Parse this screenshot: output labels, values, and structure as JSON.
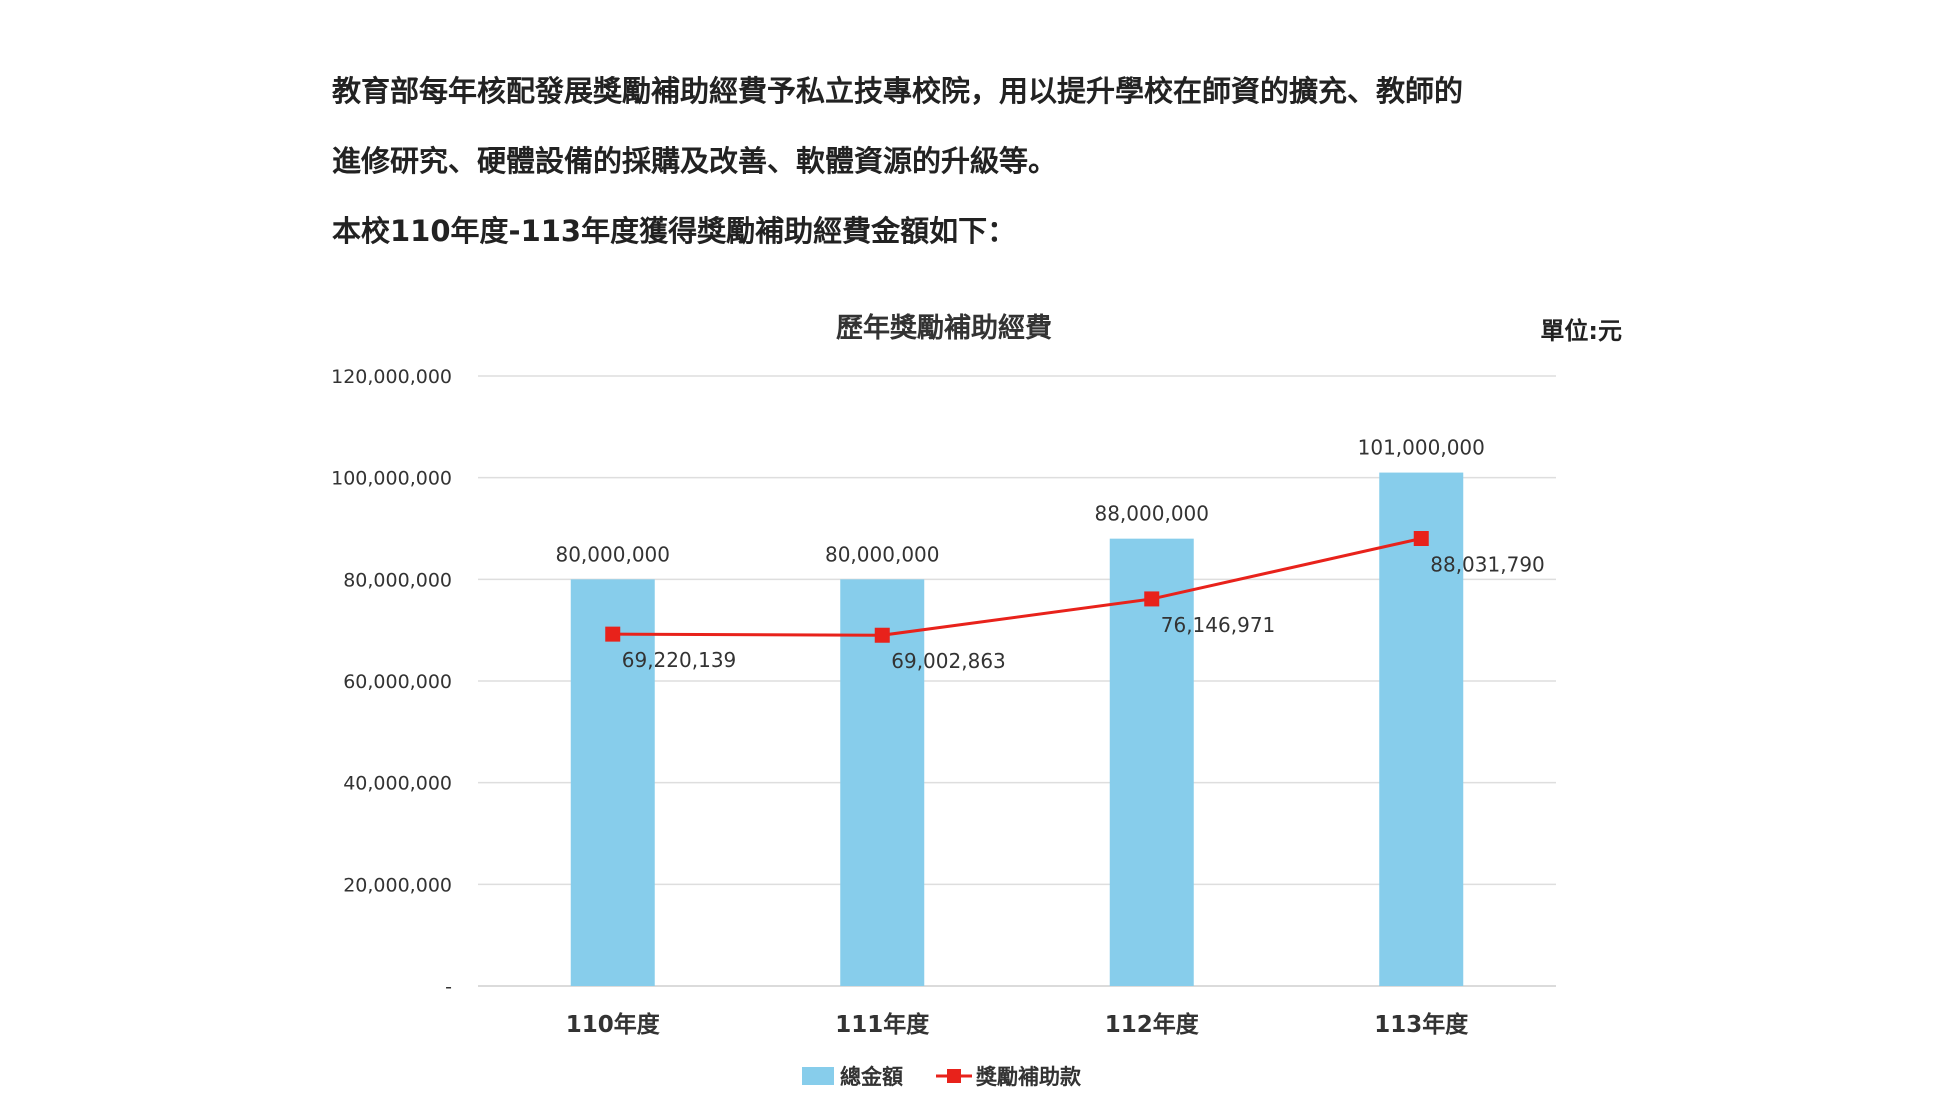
{
  "intro": {
    "lines": [
      "教育部每年核配發展獎勵補助經費予私立技專校院，用以提升學校在師資的擴充、教師的",
      "進修研究、硬體設備的採購及改善、軟體資源的升級等。",
      "本校110年度-113年度獲得獎勵補助經費金額如下："
    ]
  },
  "unit_label": "單位:元",
  "chart_data": {
    "type": "bar",
    "title": "歷年獎勵補助經費",
    "xlabel": "",
    "ylabel": "",
    "categories": [
      "110年度",
      "111年度",
      "112年度",
      "113年度"
    ],
    "ylim": [
      0,
      120000000
    ],
    "yticks": [
      {
        "value": 0,
        "label": "-"
      },
      {
        "value": 20000000,
        "label": "20,000,000"
      },
      {
        "value": 40000000,
        "label": "40,000,000"
      },
      {
        "value": 60000000,
        "label": "60,000,000"
      },
      {
        "value": 80000000,
        "label": "80,000,000"
      },
      {
        "value": 100000000,
        "label": "100,000,000"
      },
      {
        "value": 120000000,
        "label": "120,000,000"
      }
    ],
    "grid": true,
    "legend_position": "bottom",
    "series": [
      {
        "name": "總金額",
        "type": "bar",
        "color": "#87CDEB",
        "values": [
          80000000,
          80000000,
          88000000,
          101000000
        ],
        "labels": [
          "80,000,000",
          "80,000,000",
          "88,000,000",
          "101,000,000"
        ]
      },
      {
        "name": "獎勵補助款",
        "type": "line",
        "color": "#E8221B",
        "values": [
          69220139,
          69002863,
          76146971,
          88031790
        ],
        "labels": [
          "69,220,139",
          "69,002,863",
          "76,146,971",
          "88,031,790"
        ]
      }
    ]
  }
}
